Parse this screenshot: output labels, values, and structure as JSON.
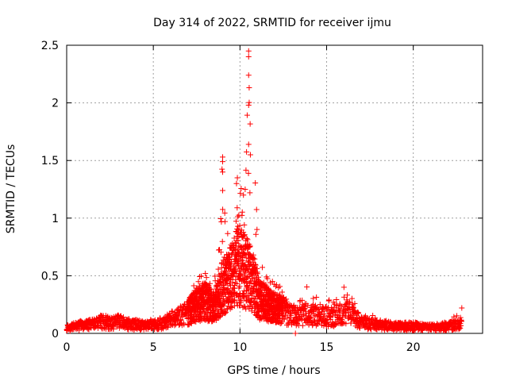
{
  "chart_data": {
    "type": "scatter",
    "title": "Day 314 of 2022, SRMTID for receiver ijmu",
    "xlabel": "GPS time / hours",
    "ylabel": "SRMTID / TECUs",
    "xlim": [
      0,
      24
    ],
    "ylim": [
      0,
      2.5
    ],
    "xticks": [
      "0",
      "5",
      "10",
      "15",
      "20"
    ],
    "yticks": [
      "0",
      "0.5",
      "1",
      "1.5",
      "2",
      "2.5"
    ],
    "grid": true,
    "marker": "+",
    "series_color": "#ff0000",
    "envelope": {
      "x": [
        0,
        0.5,
        1,
        1.5,
        2,
        2.5,
        3,
        3.5,
        4,
        4.5,
        5,
        5.5,
        6,
        6.5,
        7,
        7.5,
        8,
        8.5,
        9,
        9.3,
        9.6,
        9.9,
        10.2,
        10.5,
        10.8,
        11.1,
        11.5,
        12,
        12.5,
        13,
        13.5,
        14,
        14.5,
        15,
        15.5,
        16,
        16.5,
        17,
        17.5,
        18,
        19,
        20,
        21,
        22,
        22.8
      ],
      "y_max": [
        0.08,
        0.1,
        0.12,
        0.13,
        0.17,
        0.15,
        0.16,
        0.13,
        0.12,
        0.12,
        0.12,
        0.15,
        0.2,
        0.25,
        0.3,
        0.48,
        0.52,
        0.4,
        1.55,
        0.85,
        0.9,
        1.35,
        1.25,
        2.45,
        1.55,
        0.7,
        0.5,
        0.45,
        0.4,
        0.3,
        0.3,
        0.45,
        0.3,
        0.3,
        0.28,
        0.42,
        0.38,
        0.2,
        0.2,
        0.12,
        0.1,
        0.1,
        0.08,
        0.1,
        0.22
      ],
      "y_typical": [
        0.04,
        0.06,
        0.07,
        0.08,
        0.1,
        0.09,
        0.1,
        0.08,
        0.07,
        0.07,
        0.07,
        0.09,
        0.12,
        0.14,
        0.18,
        0.25,
        0.28,
        0.22,
        0.4,
        0.45,
        0.5,
        0.6,
        0.55,
        0.5,
        0.45,
        0.3,
        0.25,
        0.22,
        0.2,
        0.15,
        0.14,
        0.18,
        0.14,
        0.15,
        0.14,
        0.2,
        0.16,
        0.1,
        0.08,
        0.07,
        0.06,
        0.06,
        0.05,
        0.06,
        0.08
      ]
    },
    "highlights": [
      {
        "x": 10.5,
        "y": 2.45
      },
      {
        "x": 10.5,
        "y": 2.4
      },
      {
        "x": 10.5,
        "y": 2.24
      },
      {
        "x": 10.5,
        "y": 1.98
      },
      {
        "x": 10.5,
        "y": 1.64
      },
      {
        "x": 10.6,
        "y": 1.55
      },
      {
        "x": 9.0,
        "y": 1.53
      },
      {
        "x": 9.0,
        "y": 1.49
      },
      {
        "x": 9.0,
        "y": 1.4
      },
      {
        "x": 9.0,
        "y": 1.24
      },
      {
        "x": 9.8,
        "y": 1.3
      },
      {
        "x": 9.85,
        "y": 1.35
      },
      {
        "x": 10.3,
        "y": 1.25
      },
      {
        "x": 10.2,
        "y": 1.2
      },
      {
        "x": 13.2,
        "y": 0.0
      },
      {
        "x": 22.8,
        "y": 0.22
      },
      {
        "x": 16.0,
        "y": 0.4
      },
      {
        "x": 8.0,
        "y": 0.52
      }
    ]
  }
}
